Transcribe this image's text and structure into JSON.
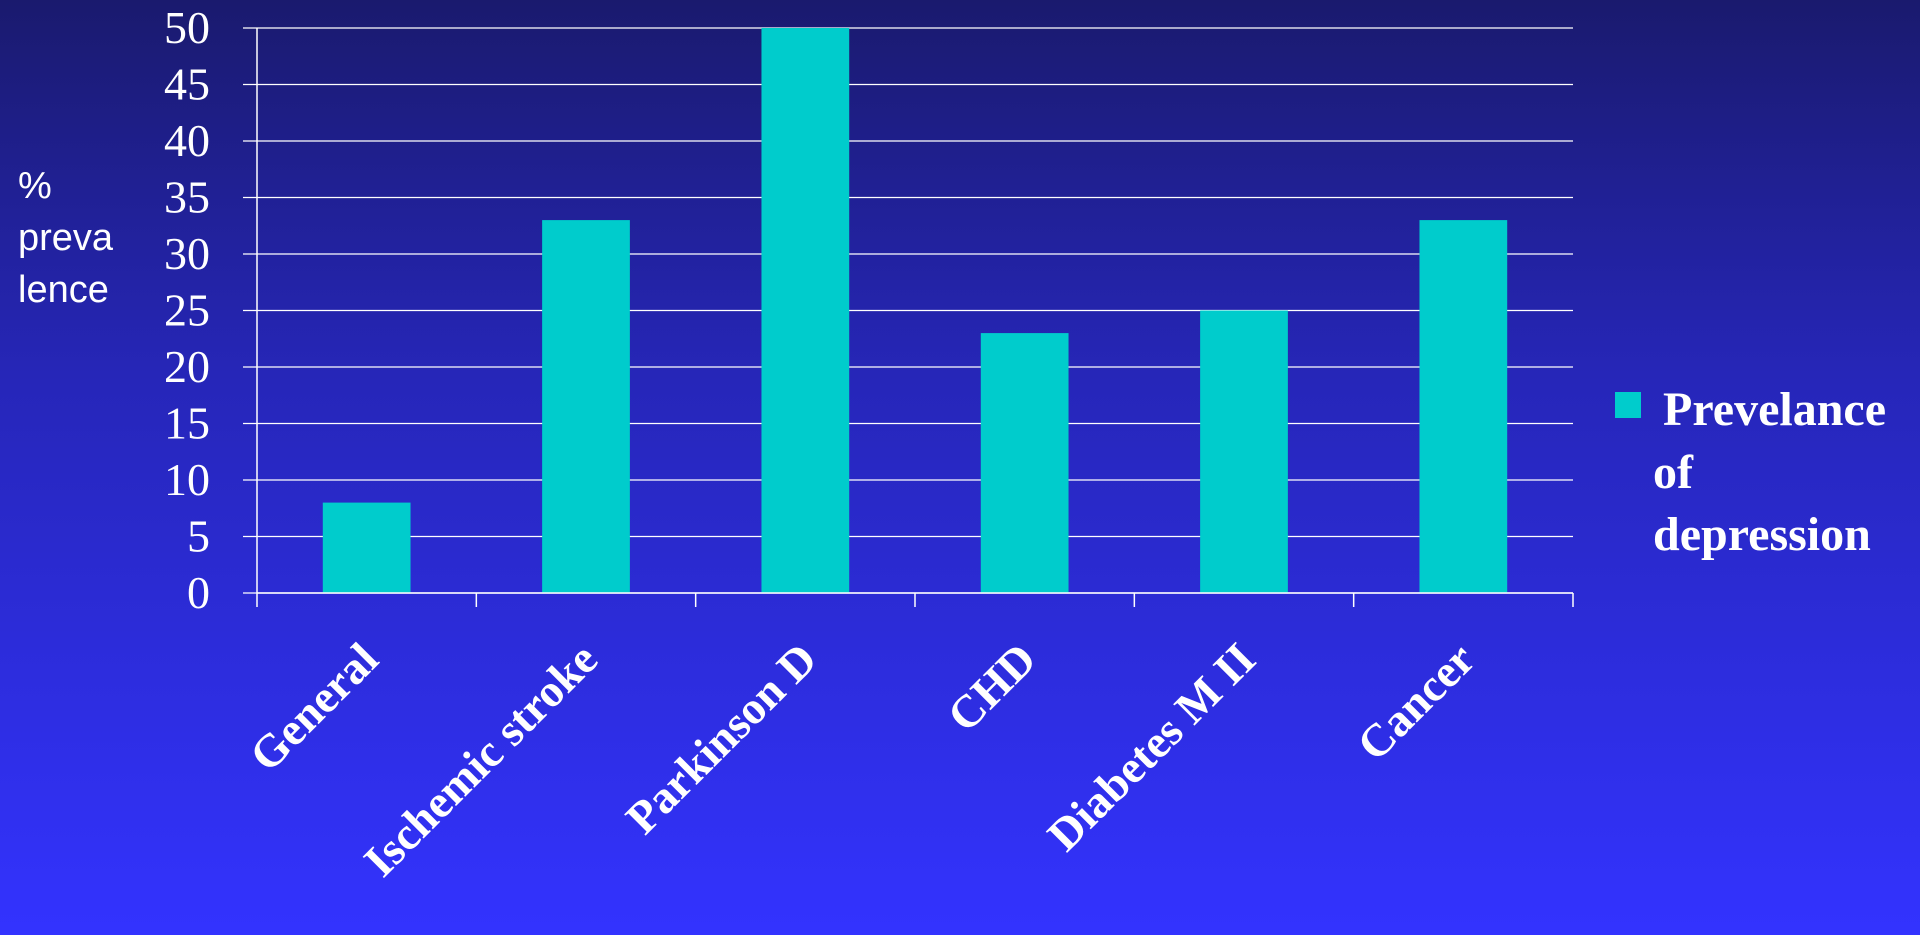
{
  "chart_data": {
    "type": "bar",
    "categories": [
      "General",
      "Ischemic stroke",
      "Parkinson D",
      "CHD",
      "Diabetes M II",
      "Cancer"
    ],
    "series": [
      {
        "name": "Prevelance of depression",
        "values": [
          8,
          33,
          50,
          23,
          25,
          33
        ],
        "color": "#00cccc"
      }
    ],
    "ylabel_lines": [
      "%",
      "preva",
      "lence"
    ],
    "legend_lines": [
      "Prevelance",
      "of",
      "depression"
    ],
    "ylim": [
      0,
      50
    ],
    "yticks": [
      "0",
      "5",
      "10",
      "15",
      "20",
      "25",
      "30",
      "35",
      "40",
      "45",
      "50"
    ],
    "grid": true,
    "legend_position": "right"
  },
  "colors": {
    "bar": "#00cccc",
    "text": "#ffffff",
    "grid": "#ffffff"
  }
}
